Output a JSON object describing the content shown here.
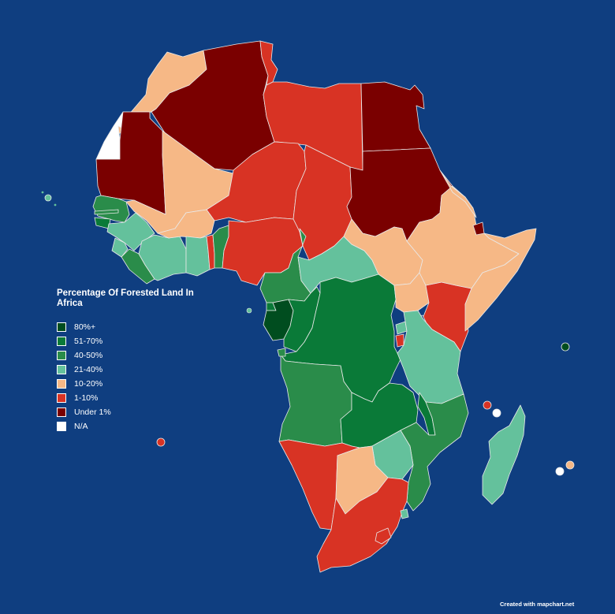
{
  "legend": {
    "title": "Percentage Of Forested Land In Africa",
    "items": [
      {
        "label": "80%+",
        "color": "#004d1f"
      },
      {
        "label": "51-70%",
        "color": "#0a7a38"
      },
      {
        "label": "40-50%",
        "color": "#2a8c4a"
      },
      {
        "label": "21-40%",
        "color": "#64c19c"
      },
      {
        "label": "10-20%",
        "color": "#f6b886"
      },
      {
        "label": "1-10%",
        "color": "#d83324"
      },
      {
        "label": "Under 1%",
        "color": "#7a0000"
      },
      {
        "label": "N/A",
        "color": "#ffffff"
      }
    ]
  },
  "credit": "Created with mapchart.net",
  "colors": {
    "ocean": "#0f3e80",
    "border": "#e9e9e9"
  }
}
